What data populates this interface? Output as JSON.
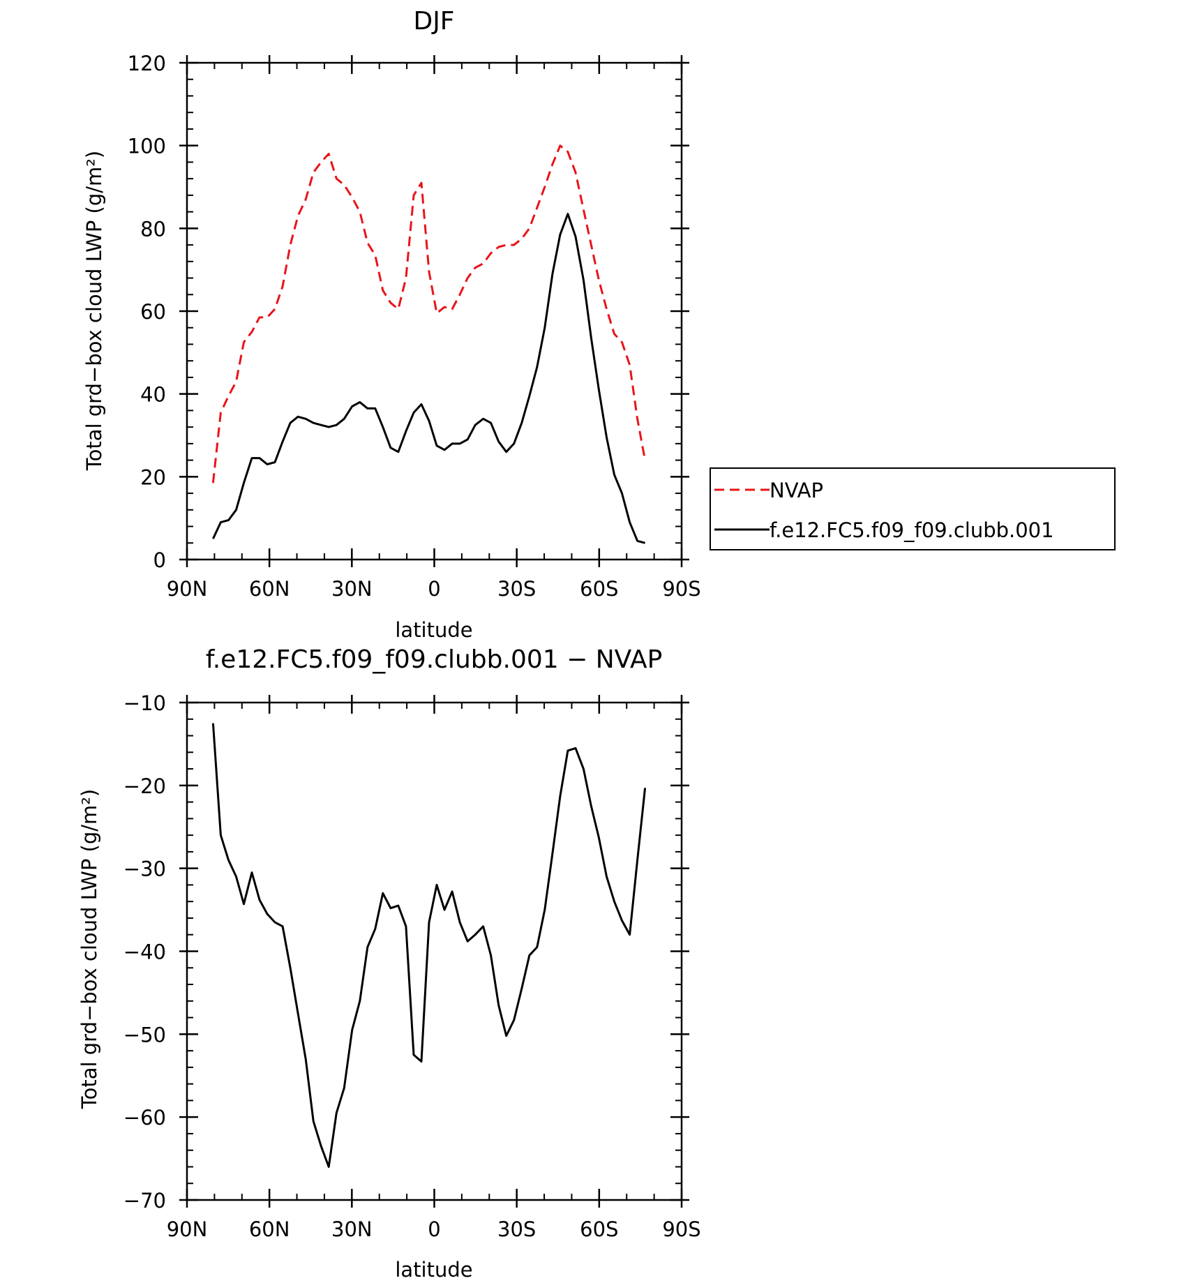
{
  "chart_data": [
    {
      "type": "line",
      "title": "DJF",
      "xlabel": "latitude",
      "ylabel": "Total grd−box cloud LWP (g/m²)",
      "xlim": [
        -90,
        90
      ],
      "ylim": [
        0,
        120
      ],
      "x_ticks": [
        {
          "value": -90,
          "label": "90N"
        },
        {
          "value": -60,
          "label": "60N"
        },
        {
          "value": -30,
          "label": "30N"
        },
        {
          "value": 0,
          "label": "0"
        },
        {
          "value": 30,
          "label": "30S"
        },
        {
          "value": 60,
          "label": "60S"
        },
        {
          "value": 90,
          "label": "90S"
        }
      ],
      "y_ticks": [
        {
          "value": 0,
          "label": "0"
        },
        {
          "value": 20,
          "label": "20"
        },
        {
          "value": 40,
          "label": "40"
        },
        {
          "value": 60,
          "label": "60"
        },
        {
          "value": 80,
          "label": "80"
        },
        {
          "value": 100,
          "label": "100"
        },
        {
          "value": 120,
          "label": "120"
        }
      ],
      "grid": false,
      "legend_position": "right",
      "x": [
        -80.5,
        -77.7,
        -74.9,
        -72.1,
        -69.3,
        -66.4,
        -63.6,
        -60.8,
        -58.0,
        -55.2,
        -52.4,
        -49.6,
        -46.8,
        -44.0,
        -41.2,
        -38.4,
        -35.6,
        -32.8,
        -29.9,
        -27.1,
        -24.3,
        -21.5,
        -18.7,
        -15.9,
        -13.1,
        -10.3,
        -7.5,
        -4.7,
        -1.9,
        0.9,
        3.7,
        6.5,
        9.3,
        12.1,
        14.9,
        17.8,
        20.6,
        23.4,
        26.2,
        29.0,
        31.8,
        34.6,
        37.4,
        40.2,
        43.0,
        45.8,
        48.6,
        51.4,
        54.3,
        57.1,
        59.9,
        62.7,
        65.5,
        68.3,
        71.1,
        73.9,
        76.7
      ],
      "series": [
        {
          "name": "NVAP",
          "color": "#e8141a",
          "dash": "dashed",
          "values": [
            18.5,
            35.5,
            39.5,
            43,
            52.5,
            55,
            58.5,
            58.5,
            60.5,
            66,
            76,
            83,
            87,
            93.5,
            96,
            98,
            92,
            90.5,
            87.5,
            84,
            76.5,
            73.5,
            65,
            62,
            60.5,
            68,
            88,
            91,
            69.5,
            59.5,
            61,
            60.5,
            64,
            68,
            70.5,
            71.5,
            74,
            75.5,
            76,
            76,
            77.5,
            80,
            85,
            90,
            95.5,
            100,
            98.5,
            93.5,
            84.5,
            76,
            67.5,
            60.5,
            54.5,
            52.5,
            47,
            34,
            24
          ]
        },
        {
          "name": "f.e12.FC5.f09_f09.clubb.001",
          "color": "#000000",
          "dash": "solid",
          "values": [
            5,
            9,
            9.5,
            12,
            18.5,
            24.5,
            24.5,
            23,
            23.5,
            28.5,
            33,
            34.5,
            34,
            33,
            32.5,
            32,
            32.5,
            34,
            37,
            38,
            36.5,
            36.5,
            32,
            27,
            26,
            31,
            35.5,
            37.5,
            33.5,
            27.5,
            26.5,
            28,
            28,
            29,
            32.5,
            34,
            33,
            28.5,
            26,
            28,
            33,
            39.5,
            46.5,
            56,
            69,
            78.5,
            83.5,
            78,
            67.5,
            53.5,
            41,
            29.5,
            20.5,
            16,
            9,
            4.5,
            4
          ]
        }
      ]
    },
    {
      "type": "line",
      "title": "f.e12.FC5.f09_f09.clubb.001 − NVAP",
      "xlabel": "latitude",
      "ylabel": "Total grd−box cloud LWP (g/m²)",
      "xlim": [
        -90,
        90
      ],
      "ylim": [
        -70,
        -10
      ],
      "x_ticks": [
        {
          "value": -90,
          "label": "90N"
        },
        {
          "value": -60,
          "label": "60N"
        },
        {
          "value": -30,
          "label": "30N"
        },
        {
          "value": 0,
          "label": "0"
        },
        {
          "value": 30,
          "label": "30S"
        },
        {
          "value": 60,
          "label": "60S"
        },
        {
          "value": 90,
          "label": "90S"
        }
      ],
      "y_ticks": [
        {
          "value": -70,
          "label": "−70"
        },
        {
          "value": -60,
          "label": "−60"
        },
        {
          "value": -50,
          "label": "−50"
        },
        {
          "value": -40,
          "label": "−40"
        },
        {
          "value": -30,
          "label": "−30"
        },
        {
          "value": -20,
          "label": "−20"
        },
        {
          "value": -10,
          "label": "−10"
        }
      ],
      "grid": false,
      "x": [
        -80.5,
        -77.7,
        -74.9,
        -72.1,
        -69.3,
        -66.4,
        -63.6,
        -60.8,
        -58.0,
        -55.2,
        -52.4,
        -49.6,
        -46.8,
        -44.0,
        -41.2,
        -38.4,
        -35.6,
        -32.8,
        -29.9,
        -27.1,
        -24.3,
        -21.5,
        -18.7,
        -15.9,
        -13.1,
        -10.3,
        -7.5,
        -4.7,
        -1.9,
        0.9,
        3.7,
        6.5,
        9.3,
        12.1,
        14.9,
        17.8,
        20.6,
        23.4,
        26.2,
        29.0,
        31.8,
        34.6,
        37.4,
        40.2,
        43.0,
        45.8,
        48.6,
        51.4,
        54.3,
        57.1,
        59.9,
        62.7,
        65.5,
        68.3,
        71.1,
        73.9,
        76.7
      ],
      "series": [
        {
          "color": "#000000",
          "values": [
            -12.5,
            -26,
            -29,
            -31,
            -34.3,
            -30.5,
            -33.8,
            -35.5,
            -36.5,
            -37,
            -42,
            -47.5,
            -53,
            -60.5,
            -63.5,
            -66,
            -59.5,
            -56.5,
            -49.5,
            -46,
            -39.5,
            -37.3,
            -33,
            -34.8,
            -34.5,
            -37,
            -52.5,
            -53.3,
            -36.5,
            -32,
            -35,
            -32.8,
            -36.5,
            -38.8,
            -38,
            -37,
            -40.5,
            -46.5,
            -50.2,
            -48.3,
            -44.5,
            -40.5,
            -39.5,
            -35,
            -28.2,
            -21.3,
            -15.8,
            -15.5,
            -18,
            -22.5,
            -26.3,
            -31,
            -34,
            -36.3,
            -38,
            -29,
            -20.3
          ]
        }
      ]
    }
  ],
  "legend": {
    "entries": [
      {
        "label": "NVAP",
        "color": "#e8141a",
        "dash": "dashed"
      },
      {
        "label": "f.e12.FC5.f09_f09.clubb.001",
        "color": "#000000",
        "dash": "solid"
      }
    ]
  }
}
